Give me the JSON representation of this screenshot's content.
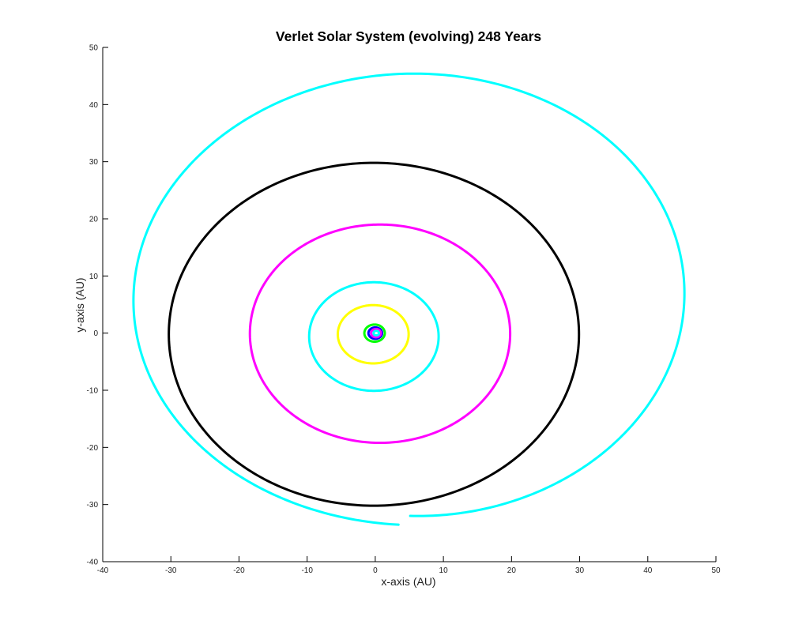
{
  "chart_data": {
    "type": "line",
    "title": "Verlet Solar System (evolving) 248 Years",
    "xlabel": "x-axis (AU)",
    "ylabel": "y-axis (AU)",
    "xlim": [
      -40,
      50
    ],
    "ylim": [
      -40,
      50
    ],
    "xticks": [
      "-40",
      "-30",
      "-20",
      "-10",
      "0",
      "10",
      "20",
      "30",
      "40",
      "50"
    ],
    "yticks": [
      "-40",
      "-30",
      "-20",
      "-10",
      "0",
      "10",
      "20",
      "30",
      "40",
      "50"
    ],
    "grid": false,
    "legend": "none",
    "series": [
      {
        "color": "#00ffff",
        "kind": "spiral",
        "cx": 6.0,
        "cy": 6.3,
        "a_start": 38.3,
        "a_end": 42.5,
        "b_start": 38.3,
        "b_end": 39.9,
        "theta_start_deg": 268.7,
        "theta_end_deg": 626.5
      },
      {
        "color": "#000000",
        "kind": "ellipse",
        "cx": -0.2,
        "cy": -0.2,
        "rx": 30.1,
        "ry": 30.0
      },
      {
        "color": "#ff00ff",
        "kind": "ellipse",
        "cx": 0.7,
        "cy": -0.1,
        "rx": 19.1,
        "ry": 19.1
      },
      {
        "color": "#00ffff",
        "kind": "ellipse",
        "cx": -0.2,
        "cy": -0.6,
        "rx": 9.5,
        "ry": 9.5
      },
      {
        "color": "#ffff00",
        "kind": "ellipse",
        "cx": -0.3,
        "cy": -0.2,
        "rx": 5.2,
        "ry": 5.1
      },
      {
        "color": "#00ff00",
        "kind": "ellipse",
        "cx": -0.1,
        "cy": 0.0,
        "rx": 1.5,
        "ry": 1.5
      },
      {
        "color": "#0000ff",
        "kind": "ellipse",
        "cx": 0.0,
        "cy": 0.0,
        "rx": 1.0,
        "ry": 1.0
      },
      {
        "color": "#ff00ff",
        "kind": "ellipse",
        "cx": 0.1,
        "cy": 0.0,
        "rx": 0.72,
        "ry": 0.72
      },
      {
        "color": "#00ffff",
        "kind": "ellipse",
        "cx": 0.15,
        "cy": 0.0,
        "rx": 0.4,
        "ry": 0.4
      }
    ]
  }
}
